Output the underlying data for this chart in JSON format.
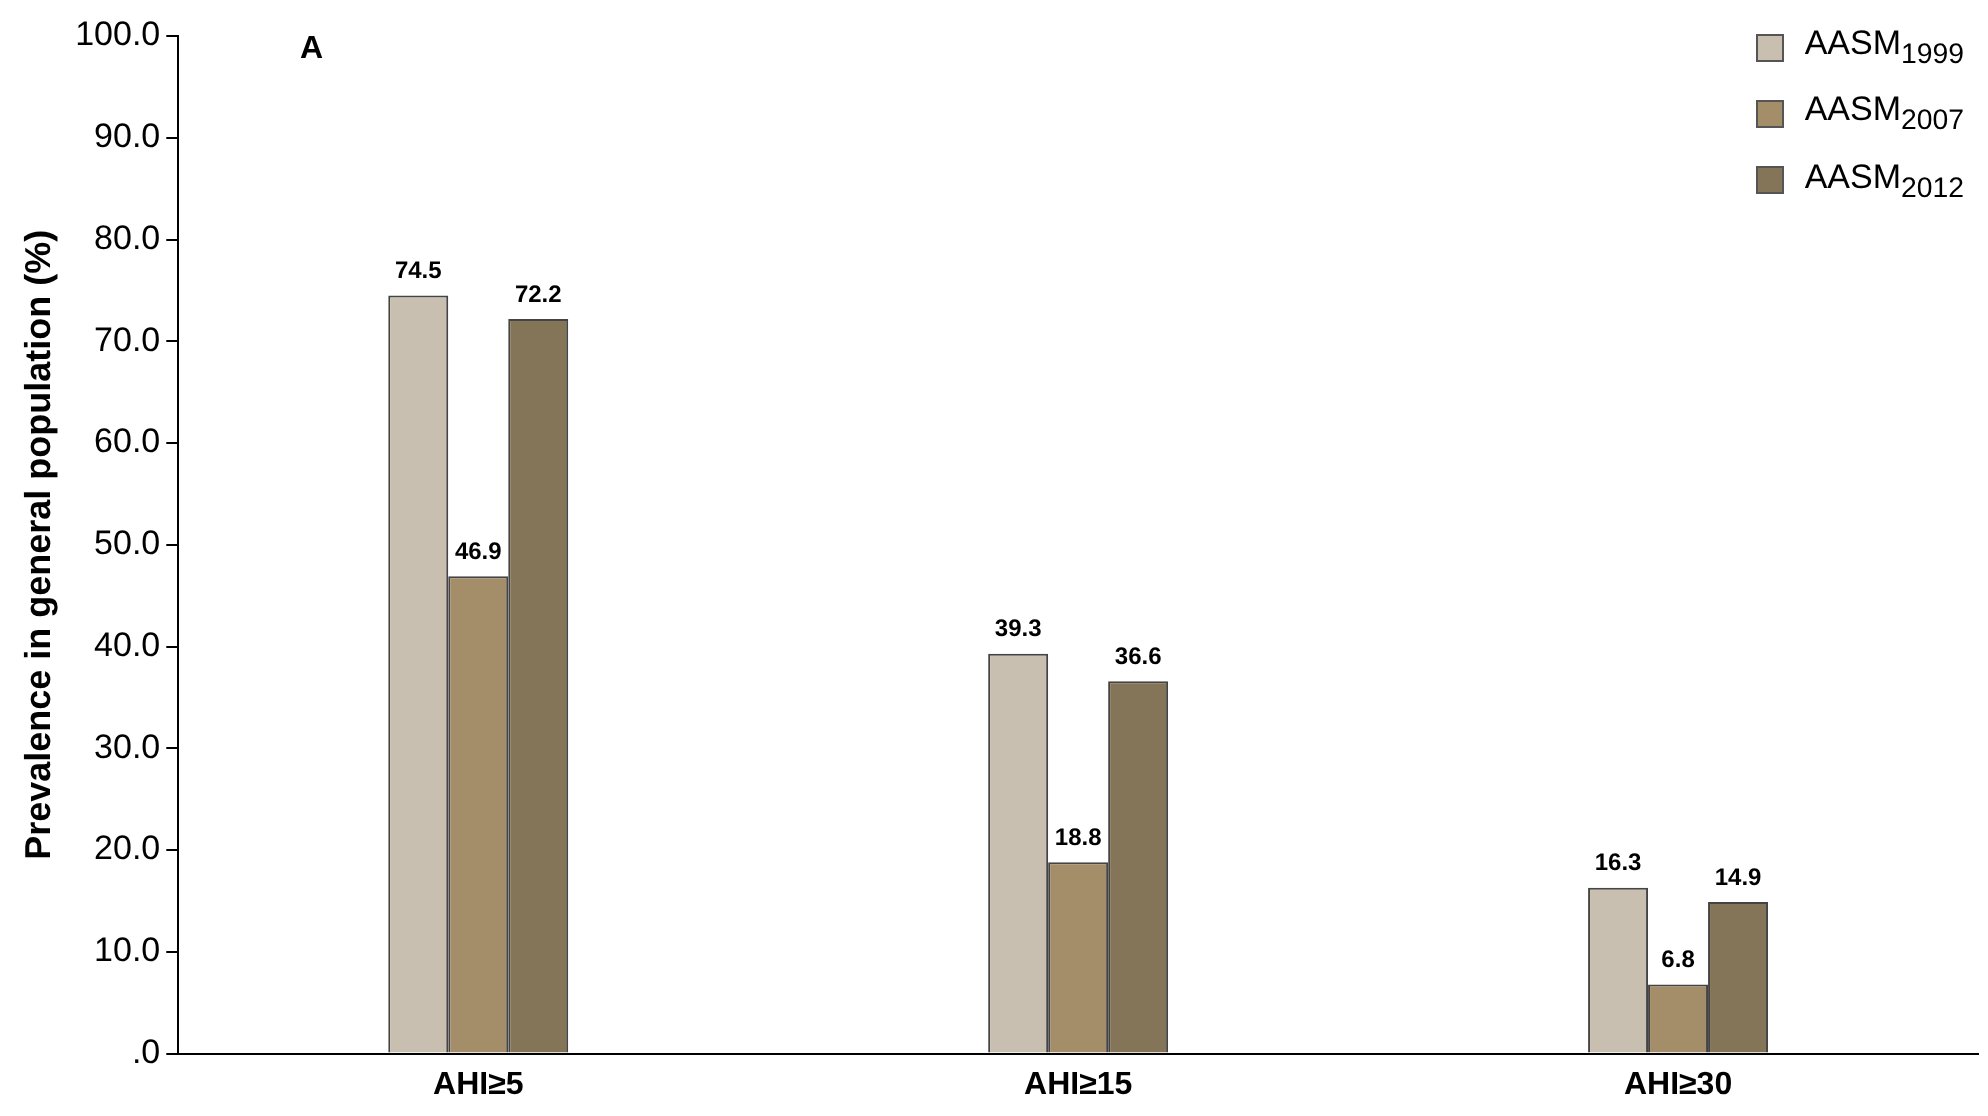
{
  "chart_data": {
    "type": "bar",
    "ylabel": "Prevalence in general population (%)",
    "categories": [
      "AHI≥5",
      "AHI≥15",
      "AHI≥30"
    ],
    "series": [
      {
        "name": "AASM$_{1999}$",
        "color": "#c9bfb0",
        "values": [
          74.5,
          39.3,
          16.3
        ]
      },
      {
        "name": "AASM$_{2007}$",
        "color": "#a48e69",
        "values": [
          46.9,
          18.8,
          6.8
        ]
      },
      {
        "name": "AASM$_{2012}$",
        "color": "#857558",
        "values": [
          72.2,
          36.6,
          14.9
        ]
      }
    ],
    "ylim": [
      0,
      100
    ],
    "yticks": [
      {
        "value": 0,
        "label": ".0"
      },
      {
        "value": 10,
        "label": "10.0"
      },
      {
        "value": 20,
        "label": "20.0"
      },
      {
        "value": 30,
        "label": "30.0"
      },
      {
        "value": 40,
        "label": "40.0"
      },
      {
        "value": 50,
        "label": "50.0"
      },
      {
        "value": 60,
        "label": "60.0"
      },
      {
        "value": 70,
        "label": "70.0"
      },
      {
        "value": 80,
        "label": "80.0"
      },
      {
        "value": 90,
        "label": "90.0"
      },
      {
        "value": 100,
        "label": "100.0"
      }
    ],
    "annotations": [
      "A"
    ],
    "data_labels": true,
    "grid": false,
    "legend": "top right"
  }
}
